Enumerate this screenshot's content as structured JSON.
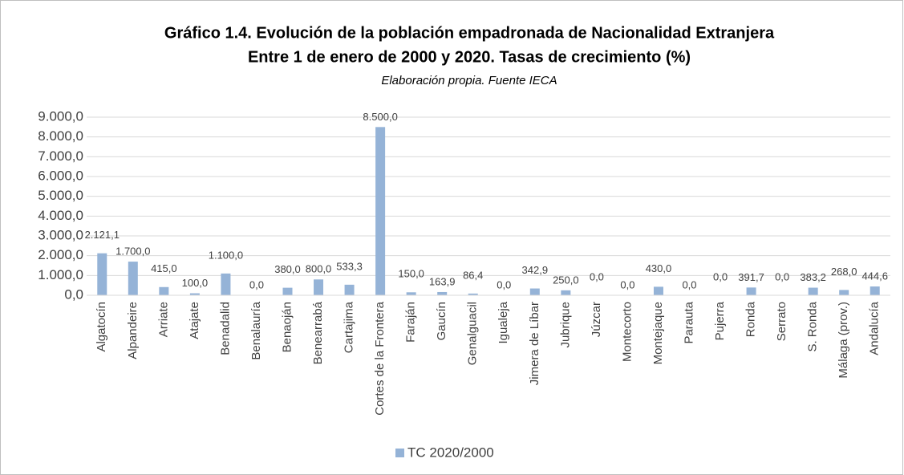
{
  "chart_data": {
    "type": "bar",
    "title": "Gráfico 1.4. Evolución de la población empadronada de Nacionalidad Extranjera",
    "subtitle": "Entre 1 de enero de 2000 y 2020. Tasas de crecimiento (%)",
    "annotation": "Elaboración propia. Fuente IECA",
    "categories": [
      "Algatocín",
      "Alpandeire",
      "Arriate",
      "Atajate",
      "Benadalid",
      "Benalauría",
      "Benaoján",
      "Benearrabá",
      "Cartajima",
      "Cortes de la Frontera",
      "Faraján",
      "Gaucín",
      "Genalguacil",
      "Igualeja",
      "Jimera de Líbar",
      "Jubrique",
      "Júzcar",
      "Montecorto",
      "Montejaque",
      "Parauta",
      "Pujerra",
      "Ronda",
      "Serrato",
      "S. Ronda",
      "Málaga (prov.)",
      "Andalucía"
    ],
    "series": [
      {
        "name": "TC 2020/2000",
        "color": "#95b3d7",
        "values": [
          2121.1,
          1700,
          415,
          100,
          1100,
          0,
          380,
          800,
          533.3,
          8500,
          150,
          163.9,
          86.4,
          0,
          342.9,
          250,
          0,
          0,
          430,
          0,
          0,
          391.7,
          0,
          383.2,
          268,
          444.6
        ],
        "value_labels": [
          "2.121,1",
          "1.700,0",
          "415,0",
          "100,0",
          "1.100,0",
          "0,0",
          "380,0",
          "800,0",
          "533,3",
          "8.500,0",
          "150,0",
          "163,9",
          "86,4",
          "0,0",
          "342,9",
          "250,0",
          "0,0",
          "0,0",
          "430,0",
          "0,0",
          "0,0",
          "391,7",
          "0,0",
          "383,2",
          "268,0",
          "444,6"
        ]
      }
    ],
    "ylim": [
      0,
      9000
    ],
    "yticks": [
      {
        "value": 0,
        "label": "0,0"
      },
      {
        "value": 1000,
        "label": "1.000,0"
      },
      {
        "value": 2000,
        "label": "2.000,0"
      },
      {
        "value": 3000,
        "label": "3.000,0"
      },
      {
        "value": 4000,
        "label": "4.000,0"
      },
      {
        "value": 5000,
        "label": "5.000,0"
      },
      {
        "value": 6000,
        "label": "6.000,0"
      },
      {
        "value": 7000,
        "label": "7.000,0"
      },
      {
        "value": 8000,
        "label": "8.000,0"
      },
      {
        "value": 9000,
        "label": "9.000,0"
      }
    ],
    "grid": true,
    "legend": "bottom"
  }
}
